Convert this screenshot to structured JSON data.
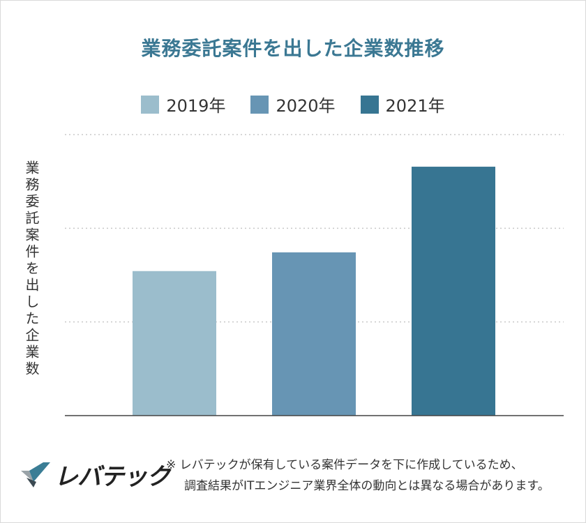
{
  "chart_data": {
    "type": "bar",
    "title": "業務委託案件を出した企業数推移",
    "categories": [
      "2019年",
      "2020年",
      "2021年"
    ],
    "values": [
      54,
      61,
      93
    ],
    "ylim": [
      0,
      105
    ],
    "gridlines": [
      35,
      70,
      105
    ],
    "xlabel": "",
    "ylabel": "業務委託案件を出した企業数",
    "legend": "top",
    "colors": [
      "#9bbdcc",
      "#6795b4",
      "#377592"
    ]
  },
  "footer": {
    "logo_text": "レバテック",
    "note_line1": "※ レバテックが保有している案件データを下に作成しているため、",
    "note_line2": "調査結果がITエンジニア業界全体の動向とは異なる場合があります。"
  }
}
